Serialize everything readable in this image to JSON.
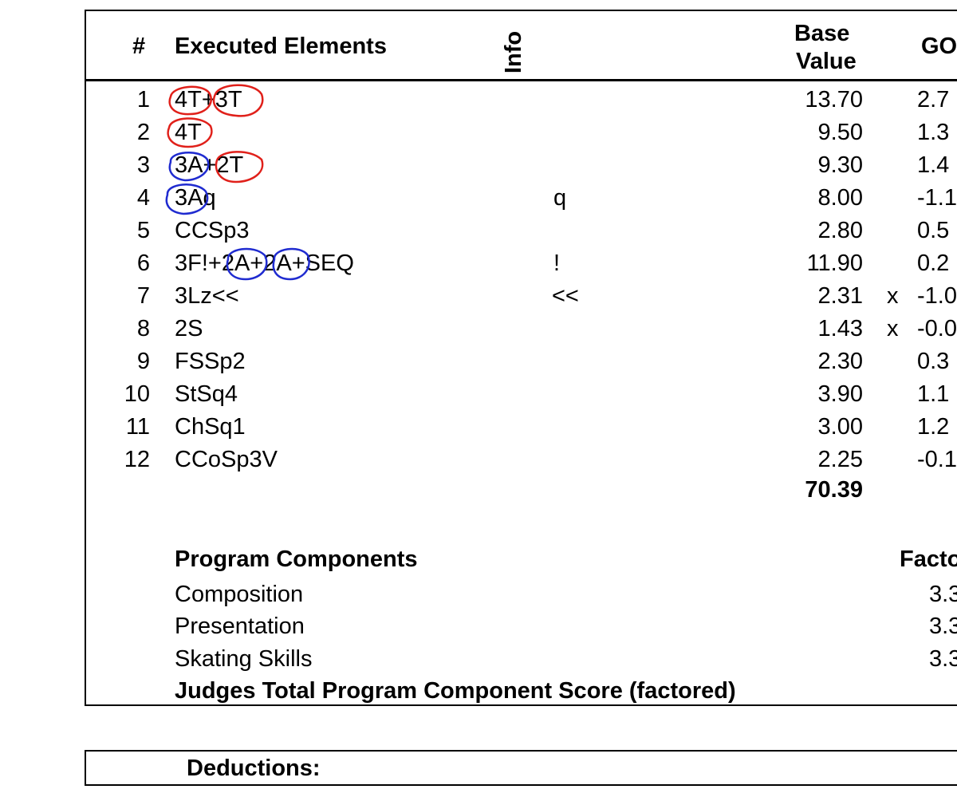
{
  "header": {
    "num": "#",
    "elements": "Executed Elements",
    "info": "Info",
    "base_line1": "Base",
    "base_line2": "Value",
    "goe": "GO"
  },
  "rows": [
    {
      "num": "1",
      "element": "4T+3T",
      "info": "",
      "base": "13.70",
      "x": "",
      "goe": "2.7"
    },
    {
      "num": "2",
      "element": "4T",
      "info": "",
      "base": "9.50",
      "x": "",
      "goe": "1.3"
    },
    {
      "num": "3",
      "element": "3A+2T",
      "info": "",
      "base": "9.30",
      "x": "",
      "goe": "1.4"
    },
    {
      "num": "4",
      "element": "3Aq",
      "info": "q",
      "base": "8.00",
      "x": "",
      "goe": "-1.1"
    },
    {
      "num": "5",
      "element": "CCSp3",
      "info": "",
      "base": "2.80",
      "x": "",
      "goe": "0.5"
    },
    {
      "num": "6",
      "element": "3F!+2A+2A+SEQ",
      "info": "!",
      "base": "11.90",
      "x": "",
      "goe": "0.2"
    },
    {
      "num": "7",
      "element": "3Lz<<",
      "info": "<<",
      "base": "2.31",
      "x": "x",
      "goe": "-1.0"
    },
    {
      "num": "8",
      "element": "2S",
      "info": "",
      "base": "1.43",
      "x": "x",
      "goe": "-0.0"
    },
    {
      "num": "9",
      "element": "FSSp2",
      "info": "",
      "base": "2.30",
      "x": "",
      "goe": "0.3"
    },
    {
      "num": "10",
      "element": "StSq4",
      "info": "",
      "base": "3.90",
      "x": "",
      "goe": "1.1"
    },
    {
      "num": "11",
      "element": "ChSq1",
      "info": "",
      "base": "3.00",
      "x": "",
      "goe": "1.2"
    },
    {
      "num": "12",
      "element": "CCoSp3V",
      "info": "",
      "base": "2.25",
      "x": "",
      "goe": "-0.1"
    }
  ],
  "total_base": "70.39",
  "components": {
    "title": "Program Components",
    "factor_header": "Facto",
    "items": [
      {
        "name": "Composition",
        "factor": "3.3"
      },
      {
        "name": "Presentation",
        "factor": "3.3"
      },
      {
        "name": "Skating Skills",
        "factor": "3.3"
      }
    ],
    "total_label": "Judges Total Program Component Score (factored)"
  },
  "deductions": {
    "label": "Deductions:"
  },
  "annotation_colors": {
    "red": "#e0201a",
    "blue": "#1f2bd0"
  }
}
